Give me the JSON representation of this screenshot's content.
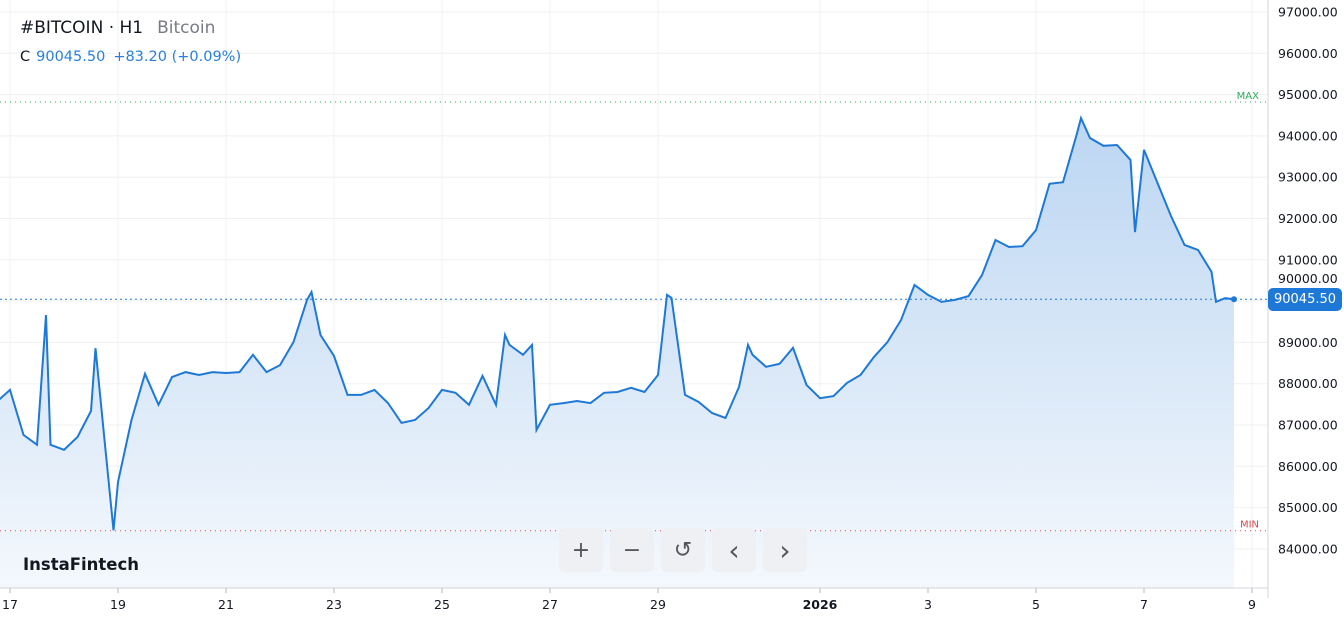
{
  "header": {
    "symbol": "#BITCOIN · H1",
    "name": "Bitcoin"
  },
  "quote": {
    "label": "C",
    "close": "90045.50",
    "change": "+83.20 (+0.09%)"
  },
  "logo": "InstaFintech",
  "controls": [
    {
      "name": "zoom-in",
      "icon": "plus-icon",
      "glyph": "+"
    },
    {
      "name": "zoom-out",
      "icon": "minus-icon",
      "glyph": "−"
    },
    {
      "name": "reset",
      "icon": "reset-icon",
      "glyph": "↺"
    },
    {
      "name": "scroll-left",
      "icon": "chevron-left-icon",
      "glyph": "‹"
    },
    {
      "name": "scroll-right",
      "icon": "chevron-right-icon",
      "glyph": "›"
    }
  ],
  "colors": {
    "line": "#1e78d8",
    "fill_top": "#bcd6f2",
    "fill_bottom": "#f4f8fd",
    "max": "#2eaa5c",
    "min": "#e24848",
    "price_label": "#1e78d8"
  },
  "chart_data": {
    "type": "area",
    "title": "",
    "xlabel": "",
    "ylabel": "",
    "ylim": [
      83400,
      97300
    ],
    "yticks": [
      "84000.00",
      "85000.00",
      "86000.00",
      "87000.00",
      "88000.00",
      "89000.00",
      "90000.00",
      "91000.00",
      "92000.00",
      "93000.00",
      "94000.00",
      "95000.00",
      "96000.00",
      "97000.00"
    ],
    "xticks": [
      {
        "date": "2025-12-17",
        "label": "17"
      },
      {
        "date": "2025-12-19",
        "label": "19"
      },
      {
        "date": "2025-12-21",
        "label": "21"
      },
      {
        "date": "2025-12-23",
        "label": "23"
      },
      {
        "date": "2025-12-25",
        "label": "25"
      },
      {
        "date": "2025-12-27",
        "label": "27"
      },
      {
        "date": "2025-12-29",
        "label": "29"
      },
      {
        "date": "2026-01-01",
        "label": "2026",
        "bold": true
      },
      {
        "date": "2026-01-03",
        "label": "3"
      },
      {
        "date": "2026-01-05",
        "label": "5"
      },
      {
        "date": "2026-01-07",
        "label": "7"
      },
      {
        "date": "2026-01-09",
        "label": "9"
      }
    ],
    "grid": true,
    "current_price": "90045.50",
    "current_value": 90045.5,
    "max_label": "MAX",
    "max_level": 94820,
    "min_label": "MIN",
    "min_level": 84440,
    "points": [
      [
        "2025-12-16T18:00",
        87560
      ],
      [
        "2025-12-17T00:00",
        87850
      ],
      [
        "2025-12-17T06:00",
        86760
      ],
      [
        "2025-12-17T12:00",
        86520
      ],
      [
        "2025-12-17T16:00",
        89660
      ],
      [
        "2025-12-17T18:00",
        86520
      ],
      [
        "2025-12-18T00:00",
        86400
      ],
      [
        "2025-12-18T06:00",
        86710
      ],
      [
        "2025-12-18T12:00",
        87340
      ],
      [
        "2025-12-18T14:00",
        88860
      ],
      [
        "2025-12-18T18:00",
        86640
      ],
      [
        "2025-12-18T22:00",
        84450
      ],
      [
        "2025-12-19T00:00",
        85620
      ],
      [
        "2025-12-19T06:00",
        87120
      ],
      [
        "2025-12-19T12:00",
        88240
      ],
      [
        "2025-12-19T18:00",
        87490
      ],
      [
        "2025-12-20T00:00",
        88160
      ],
      [
        "2025-12-20T06:00",
        88280
      ],
      [
        "2025-12-20T12:00",
        88210
      ],
      [
        "2025-12-20T18:00",
        88280
      ],
      [
        "2025-12-21T00:00",
        88260
      ],
      [
        "2025-12-21T06:00",
        88280
      ],
      [
        "2025-12-21T12:00",
        88700
      ],
      [
        "2025-12-21T18:00",
        88280
      ],
      [
        "2025-12-22T00:00",
        88450
      ],
      [
        "2025-12-22T06:00",
        89010
      ],
      [
        "2025-12-22T12:00",
        90030
      ],
      [
        "2025-12-22T14:00",
        90220
      ],
      [
        "2025-12-22T18:00",
        89180
      ],
      [
        "2025-12-23T00:00",
        88670
      ],
      [
        "2025-12-23T06:00",
        87730
      ],
      [
        "2025-12-23T12:00",
        87730
      ],
      [
        "2025-12-23T18:00",
        87850
      ],
      [
        "2025-12-24T00:00",
        87530
      ],
      [
        "2025-12-24T06:00",
        87050
      ],
      [
        "2025-12-24T12:00",
        87120
      ],
      [
        "2025-12-24T18:00",
        87410
      ],
      [
        "2025-12-25T00:00",
        87850
      ],
      [
        "2025-12-25T06:00",
        87780
      ],
      [
        "2025-12-25T12:00",
        87490
      ],
      [
        "2025-12-25T18:00",
        88190
      ],
      [
        "2025-12-26T00:00",
        87490
      ],
      [
        "2025-12-26T04:00",
        89180
      ],
      [
        "2025-12-26T06:00",
        88940
      ],
      [
        "2025-12-26T12:00",
        88700
      ],
      [
        "2025-12-26T16:00",
        88940
      ],
      [
        "2025-12-26T18:00",
        86880
      ],
      [
        "2025-12-27T00:00",
        87490
      ],
      [
        "2025-12-27T06:00",
        87530
      ],
      [
        "2025-12-27T12:00",
        87580
      ],
      [
        "2025-12-27T18:00",
        87530
      ],
      [
        "2025-12-28T00:00",
        87780
      ],
      [
        "2025-12-28T06:00",
        87800
      ],
      [
        "2025-12-28T12:00",
        87900
      ],
      [
        "2025-12-28T18:00",
        87800
      ],
      [
        "2025-12-29T00:00",
        88210
      ],
      [
        "2025-12-29T04:00",
        90150
      ],
      [
        "2025-12-29T06:00",
        90080
      ],
      [
        "2025-12-29T12:00",
        87730
      ],
      [
        "2025-12-29T18:00",
        87560
      ],
      [
        "2025-12-30T00:00",
        87290
      ],
      [
        "2025-12-30T06:00",
        87170
      ],
      [
        "2025-12-30T12:00",
        87920
      ],
      [
        "2025-12-30T16:00",
        88940
      ],
      [
        "2025-12-30T18:00",
        88700
      ],
      [
        "2025-12-31T00:00",
        88410
      ],
      [
        "2025-12-31T06:00",
        88480
      ],
      [
        "2025-12-31T12:00",
        88870
      ],
      [
        "2025-12-31T18:00",
        87970
      ],
      [
        "2026-01-01T00:00",
        87650
      ],
      [
        "2026-01-01T06:00",
        87700
      ],
      [
        "2026-01-01T12:00",
        88020
      ],
      [
        "2026-01-01T18:00",
        88210
      ],
      [
        "2026-01-02T00:00",
        88650
      ],
      [
        "2026-01-02T06:00",
        89010
      ],
      [
        "2026-01-02T12:00",
        89540
      ],
      [
        "2026-01-02T18:00",
        90390
      ],
      [
        "2026-01-03T00:00",
        90150
      ],
      [
        "2026-01-03T06:00",
        89980
      ],
      [
        "2026-01-03T12:00",
        90030
      ],
      [
        "2026-01-03T18:00",
        90120
      ],
      [
        "2026-01-04T00:00",
        90630
      ],
      [
        "2026-01-04T06:00",
        91480
      ],
      [
        "2026-01-04T12:00",
        91310
      ],
      [
        "2026-01-04T18:00",
        91330
      ],
      [
        "2026-01-05T00:00",
        91720
      ],
      [
        "2026-01-05T06:00",
        92840
      ],
      [
        "2026-01-05T12:00",
        92880
      ],
      [
        "2026-01-05T18:00",
        94020
      ],
      [
        "2026-01-05T20:00",
        94430
      ],
      [
        "2026-01-06T00:00",
        93950
      ],
      [
        "2026-01-06T06:00",
        93760
      ],
      [
        "2026-01-06T12:00",
        93780
      ],
      [
        "2026-01-06T18:00",
        93420
      ],
      [
        "2026-01-06T20:00",
        91670
      ],
      [
        "2026-01-07T00:00",
        93660
      ],
      [
        "2026-01-07T06:00",
        92860
      ],
      [
        "2026-01-07T12:00",
        92060
      ],
      [
        "2026-01-07T18:00",
        91360
      ],
      [
        "2026-01-08T00:00",
        91240
      ],
      [
        "2026-01-08T06:00",
        90710
      ],
      [
        "2026-01-08T08:00",
        89980
      ],
      [
        "2026-01-08T12:00",
        90070
      ],
      [
        "2026-01-08T16:00",
        90045.5
      ]
    ]
  }
}
